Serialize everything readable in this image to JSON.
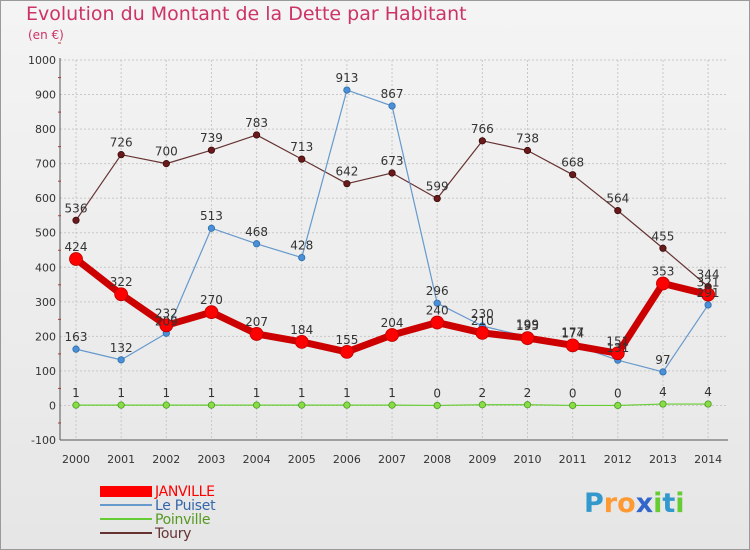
{
  "title": "Evolution du Montant de la Dette par Habitant",
  "unit": "(en €)",
  "logo": {
    "text": "Proxiti",
    "letters": [
      "P",
      "r",
      "o",
      "x",
      "i",
      "t",
      "i"
    ],
    "colors": [
      "#3399cc",
      "#ff9933",
      "#ff9933",
      "#3366cc",
      "#66cc33",
      "#3399cc",
      "#66cc33"
    ]
  },
  "chart_data": {
    "type": "line",
    "categories": [
      "2000",
      "2001",
      "2002",
      "2003",
      "2004",
      "2005",
      "2006",
      "2007",
      "2008",
      "2009",
      "2010",
      "2011",
      "2012",
      "2013",
      "2014"
    ],
    "ylim": [
      -100,
      1000
    ],
    "yticks": [
      "-100",
      "0",
      "100",
      "200",
      "300",
      "400",
      "500",
      "600",
      "700",
      "800",
      "900",
      "1000"
    ],
    "ytick_values": [
      -100,
      0,
      100,
      200,
      300,
      400,
      500,
      600,
      700,
      800,
      900,
      1000
    ],
    "grid": true,
    "legend_position": "bottom-left",
    "series": [
      {
        "name": "JANVILLE",
        "color": "#ff0000",
        "values": [
          424,
          322,
          232,
          270,
          207,
          184,
          155,
          204,
          240,
          210,
          195,
          174,
          151,
          353,
          321
        ],
        "labels": [
          "424",
          "322",
          "232",
          "270",
          "207",
          "184",
          "155",
          "204",
          "240",
          "210",
          "195",
          "174",
          "151",
          "353",
          "321"
        ]
      },
      {
        "name": "Le Puiset",
        "color": "#6699cc",
        "values": [
          163,
          132,
          209,
          513,
          468,
          428,
          913,
          867,
          296,
          230,
          199,
          177,
          131,
          97,
          291
        ],
        "labels": [
          "163",
          "132",
          "209",
          "513",
          "468",
          "428",
          "913",
          "867",
          "296",
          "230",
          "199",
          "177",
          "131",
          "97",
          "291"
        ]
      },
      {
        "name": "Poinville",
        "color": "#66cc33",
        "values": [
          1,
          1,
          1,
          1,
          1,
          1,
          1,
          1,
          0,
          2,
          2,
          0,
          0,
          4,
          4
        ],
        "labels": [
          "1",
          "1",
          "1",
          "1",
          "1",
          "1",
          "1",
          "1",
          "0",
          "2",
          "2",
          "0",
          "0",
          "4",
          "4"
        ]
      },
      {
        "name": "Toury",
        "color": "#663333",
        "values": [
          536,
          726,
          700,
          739,
          783,
          713,
          642,
          673,
          599,
          766,
          738,
          668,
          564,
          455,
          344
        ],
        "labels": [
          "536",
          "726",
          "700",
          "739",
          "783",
          "713",
          "642",
          "673",
          "599",
          "766",
          "738",
          "668",
          "564",
          "455",
          "344"
        ]
      }
    ]
  }
}
